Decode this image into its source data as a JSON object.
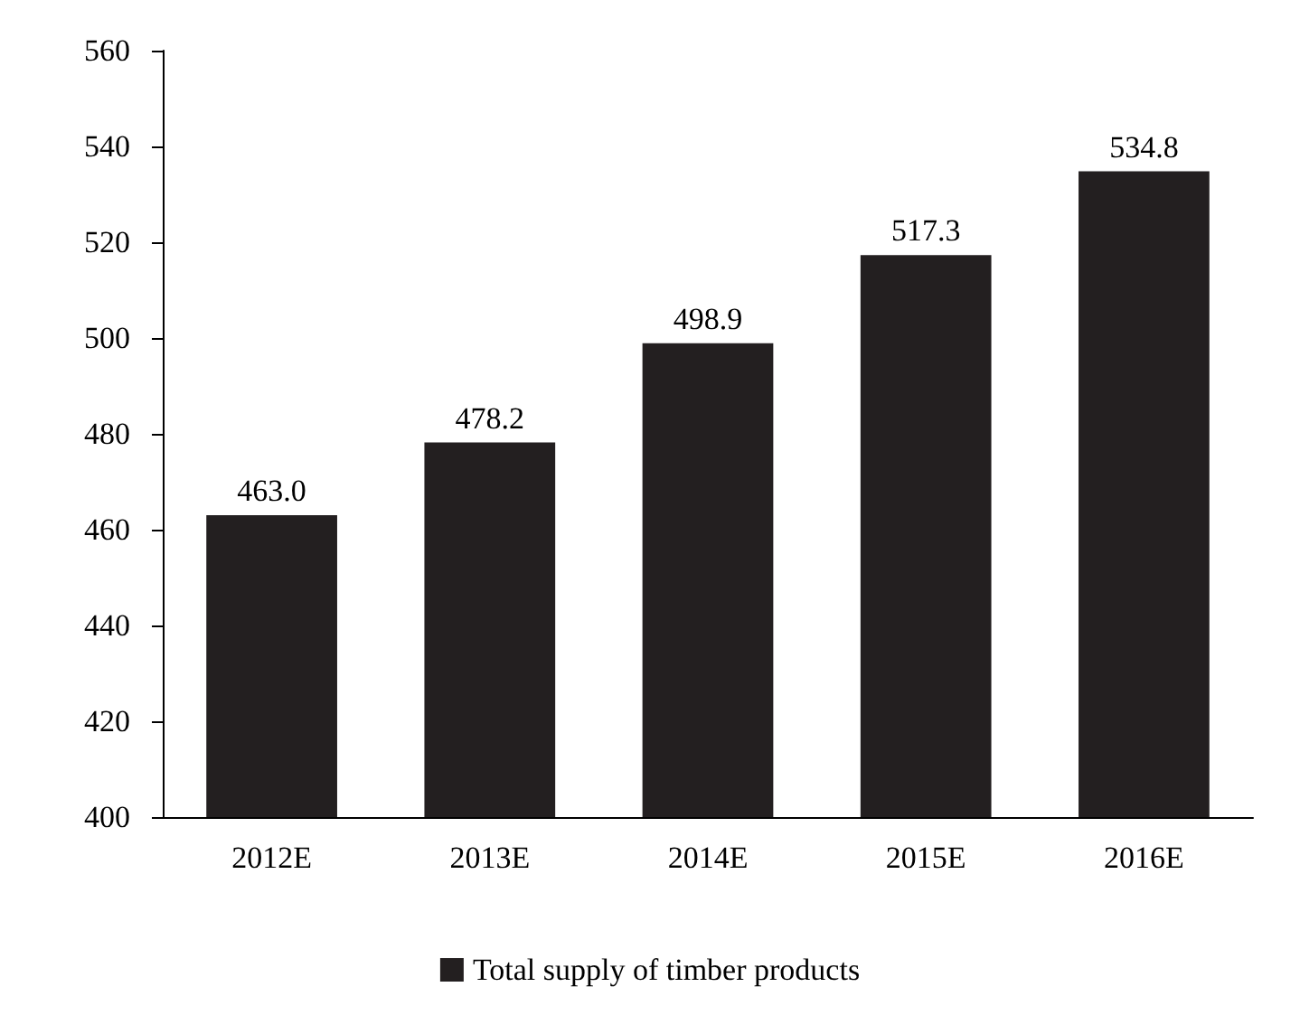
{
  "chart_data": {
    "type": "bar",
    "categories": [
      "2012E",
      "2013E",
      "2014E",
      "2015E",
      "2016E"
    ],
    "series": [
      {
        "name": "Total supply of timber products",
        "color": "#231f20",
        "values": [
          463.0,
          478.2,
          498.9,
          517.3,
          534.8
        ],
        "value_labels": [
          "463.0",
          "478.2",
          "498.9",
          "517.3",
          "534.8"
        ]
      }
    ],
    "ylim": [
      400,
      560
    ],
    "yticks": [
      400,
      420,
      440,
      460,
      480,
      500,
      520,
      540,
      560
    ],
    "grid": false,
    "legend": "bottom"
  }
}
